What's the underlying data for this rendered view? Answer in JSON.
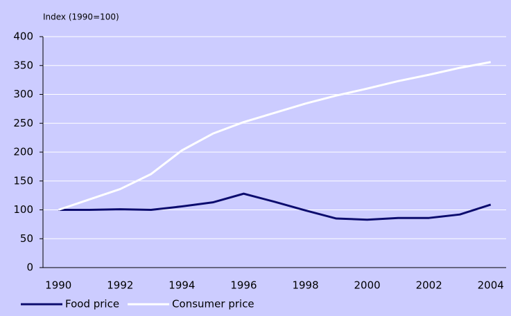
{
  "chart_data": {
    "type": "line",
    "y_axis_label": "Index (1990=100)",
    "x": [
      1990,
      1991,
      1992,
      1993,
      1994,
      1995,
      1996,
      1997,
      1998,
      1999,
      2000,
      2001,
      2002,
      2003,
      2004
    ],
    "series": [
      {
        "name": "Food price",
        "color": "#0c0c6e",
        "values": [
          100,
          100,
          101,
          100,
          106,
          113,
          128,
          114,
          99,
          85,
          83,
          86,
          86,
          92,
          109
        ]
      },
      {
        "name": "Consumer price",
        "color": "#ffffff",
        "values": [
          100,
          118,
          136,
          162,
          203,
          232,
          252,
          268,
          284,
          298,
          310,
          323,
          334,
          346,
          356
        ]
      }
    ],
    "xlim": [
      1989.5,
      2004.5
    ],
    "xticks": [
      1990,
      1992,
      1994,
      1996,
      1998,
      2000,
      2002,
      2004
    ],
    "ylim": [
      0,
      400
    ],
    "yticks": [
      0,
      50,
      100,
      150,
      200,
      250,
      300,
      350,
      400
    ],
    "grid": true,
    "background": "#ccccff"
  }
}
